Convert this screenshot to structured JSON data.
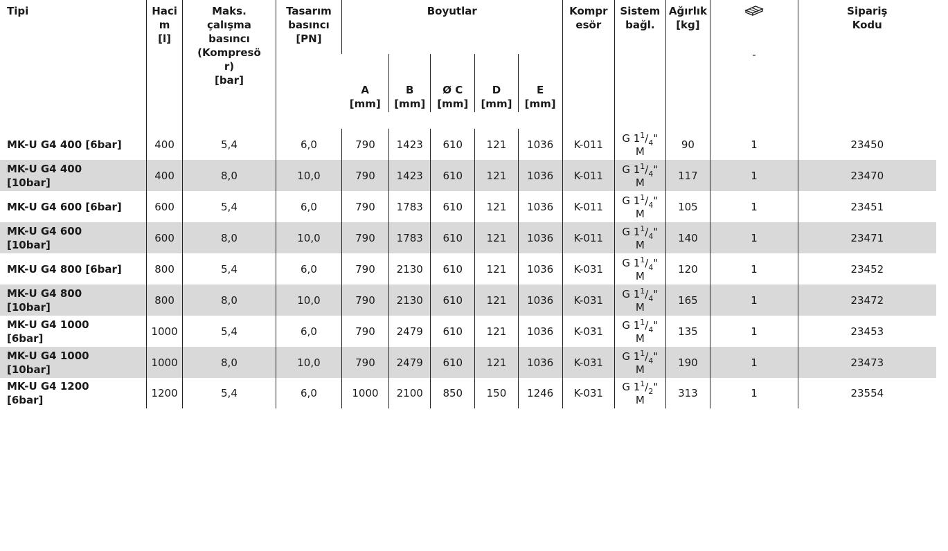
{
  "colors": {
    "stripe": "#d9d9d9",
    "border": "#222222"
  },
  "headers": {
    "type": "Tipi",
    "volume": "Haci\nm\n[l]",
    "max_pressure": "Maks.\nçalışma\nbasıncı\n(Kompresö\nr)\n[bar]",
    "design_pressure": "Tasarım\nbasıncı\n[PN]",
    "dimensions": "Boyutlar",
    "dim_a": "A\n[mm]",
    "dim_b": "B\n[mm]",
    "dim_c": "Ø C\n[mm]",
    "dim_d": "D\n[mm]",
    "dim_e": "E\n[mm]",
    "compressor": "Kompr\nesör",
    "connection": "Sistem\nbağl.",
    "weight": "Ağırlık\n[kg]",
    "pallet_icon": "pallet-icon",
    "pallet_sub": "-",
    "order_code": "Sipariş\nKodu"
  },
  "rows": [
    {
      "type_bold": "MK-U G4 400 [6bar]",
      "type_rest": "",
      "volume": "400",
      "max_p": "5,4",
      "pn": "6,0",
      "a": "790",
      "b": "1423",
      "c": "610",
      "d": "121",
      "e": "1036",
      "comp": "K-011",
      "conn_pre": "G 1",
      "conn_num": "1",
      "conn_den": "4",
      "conn_post": "\"",
      "conn_suffix": "M",
      "weight": "90",
      "pallet": "1",
      "code": "23450"
    },
    {
      "type_bold": "MK-U G4 400\n[10bar]",
      "type_rest": "",
      "volume": "400",
      "max_p": "8,0",
      "pn": "10,0",
      "a": "790",
      "b": "1423",
      "c": "610",
      "d": "121",
      "e": "1036",
      "comp": "K-011",
      "conn_pre": "G 1",
      "conn_num": "1",
      "conn_den": "4",
      "conn_post": "\"",
      "conn_suffix": "M",
      "weight": "117",
      "pallet": "1",
      "code": "23470"
    },
    {
      "type_bold": "MK-U G4 600 [6bar]",
      "type_rest": "",
      "volume": "600",
      "max_p": "5,4",
      "pn": "6,0",
      "a": "790",
      "b": "1783",
      "c": "610",
      "d": "121",
      "e": "1036",
      "comp": "K-011",
      "conn_pre": "G 1",
      "conn_num": "1",
      "conn_den": "4",
      "conn_post": "\"",
      "conn_suffix": "M",
      "weight": "105",
      "pallet": "1",
      "code": "23451"
    },
    {
      "type_bold": "MK-U G4 600\n[10bar]",
      "type_rest": "",
      "volume": "600",
      "max_p": "8,0",
      "pn": "10,0",
      "a": "790",
      "b": "1783",
      "c": "610",
      "d": "121",
      "e": "1036",
      "comp": "K-011",
      "conn_pre": "G 1",
      "conn_num": "1",
      "conn_den": "4",
      "conn_post": "\"",
      "conn_suffix": "M",
      "weight": "140",
      "pallet": "1",
      "code": "23471"
    },
    {
      "type_bold": "MK-U G4 800 [6bar]",
      "type_rest": "",
      "volume": "800",
      "max_p": "5,4",
      "pn": "6,0",
      "a": "790",
      "b": "2130",
      "c": "610",
      "d": "121",
      "e": "1036",
      "comp": "K-031",
      "conn_pre": "G 1",
      "conn_num": "1",
      "conn_den": "4",
      "conn_post": "\"",
      "conn_suffix": "M",
      "weight": "120",
      "pallet": "1",
      "code": "23452"
    },
    {
      "type_bold": "MK-U G4 800\n[10bar]",
      "type_rest": "",
      "volume": "800",
      "max_p": "8,0",
      "pn": "10,0",
      "a": "790",
      "b": "2130",
      "c": "610",
      "d": "121",
      "e": "1036",
      "comp": "K-031",
      "conn_pre": "G 1",
      "conn_num": "1",
      "conn_den": "4",
      "conn_post": "\"",
      "conn_suffix": "M",
      "weight": "165",
      "pallet": "1",
      "code": "23472"
    },
    {
      "type_bold": "MK-U G4 1000\n[6bar]",
      "type_rest": "",
      "volume": "1000",
      "max_p": "5,4",
      "pn": "6,0",
      "a": "790",
      "b": "2479",
      "c": "610",
      "d": "121",
      "e": "1036",
      "comp": "K-031",
      "conn_pre": "G 1",
      "conn_num": "1",
      "conn_den": "4",
      "conn_post": "\"",
      "conn_suffix": "M",
      "weight": "135",
      "pallet": "1",
      "code": "23453"
    },
    {
      "type_bold": "MK-U G4 1000\n[10bar]",
      "type_rest": "",
      "volume": "1000",
      "max_p": "8,0",
      "pn": "10,0",
      "a": "790",
      "b": "2479",
      "c": "610",
      "d": "121",
      "e": "1036",
      "comp": "K-031",
      "conn_pre": "G 1",
      "conn_num": "1",
      "conn_den": "4",
      "conn_post": "\"",
      "conn_suffix": "M",
      "weight": "190",
      "pallet": "1",
      "code": "23473"
    },
    {
      "type_bold": "MK-U G4 1200\n[6bar]",
      "type_rest": "",
      "volume": "1200",
      "max_p": "5,4",
      "pn": "6,0",
      "a": "1000",
      "b": "2100",
      "c": "850",
      "d": "150",
      "e": "1246",
      "comp": "K-031",
      "conn_pre": "G 1",
      "conn_num": "1",
      "conn_den": "2",
      "conn_post": "\"",
      "conn_suffix": "M",
      "weight": "313",
      "pallet": "1",
      "code": "23554"
    }
  ]
}
